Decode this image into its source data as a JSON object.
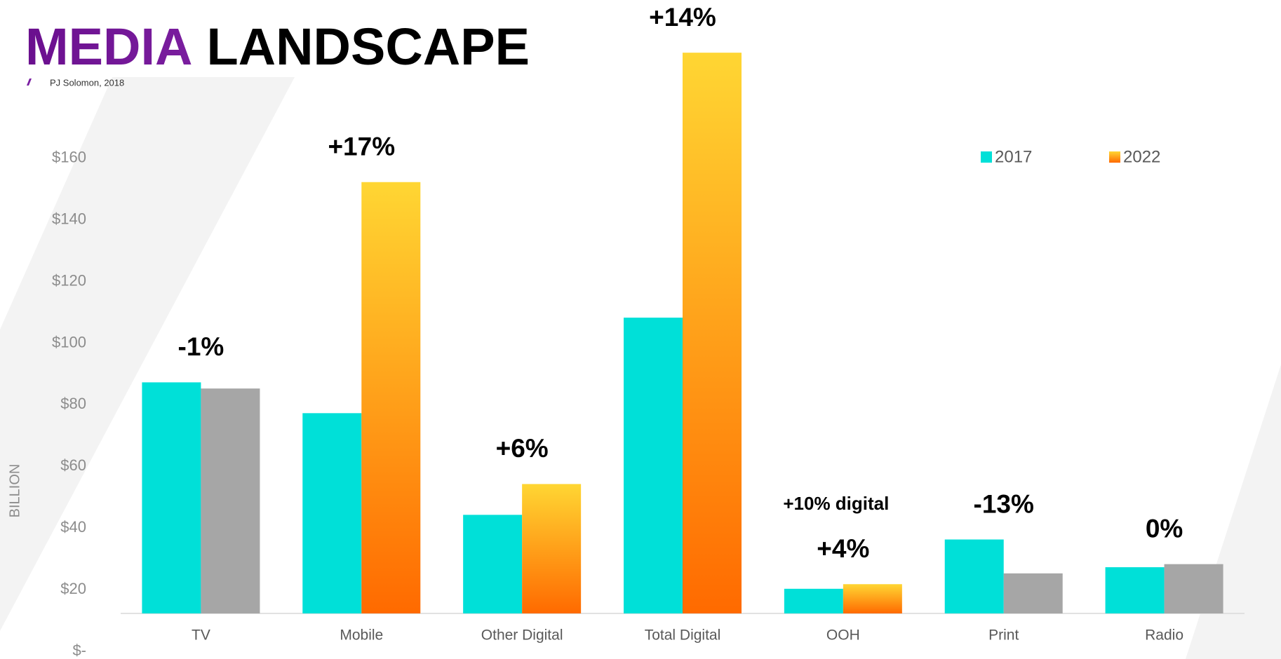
{
  "chart_data": {
    "type": "bar",
    "title_part1": "MEDIA",
    "title_part2": "LANDSCAPE",
    "subtitle": "PJ Solomon, 2018",
    "y_label": "BILLION",
    "categories": [
      "TV",
      "Mobile",
      "Other Digital",
      "Total Digital",
      "OOH",
      "Print",
      "Radio"
    ],
    "series": [
      {
        "name": "2017",
        "color": "#00e0d8",
        "values": [
          75,
          65,
          32,
          96,
          8,
          24,
          15
        ]
      },
      {
        "name": "2022",
        "color": [
          "#ffd633",
          "#ff6a00"
        ],
        "colors": [
          "#a6a6a6",
          null,
          null,
          null,
          null,
          "#a6a6a6",
          "#a6a6a6"
        ],
        "values": [
          73,
          140,
          42,
          182,
          9.5,
          13,
          16
        ]
      }
    ],
    "annotations": [
      {
        "text": "-1%",
        "category": "TV"
      },
      {
        "text": "+17%",
        "category": "Mobile"
      },
      {
        "text": "+6%",
        "category": "Other Digital"
      },
      {
        "text": "+14%",
        "category": "Total Digital"
      },
      {
        "text": "+4%",
        "category": "OOH"
      },
      {
        "text": "+10% digital",
        "category": "OOH"
      },
      {
        "text": "-13%",
        "category": "Print"
      },
      {
        "text": "0%",
        "category": "Radio"
      }
    ],
    "ylim": [
      0,
      190
    ],
    "yticks": [
      {
        "value": 0,
        "label": "$-"
      },
      {
        "value": 20,
        "label": "$20"
      },
      {
        "value": 40,
        "label": "$40"
      },
      {
        "value": 60,
        "label": "$60"
      },
      {
        "value": 80,
        "label": "$80"
      },
      {
        "value": 100,
        "label": "$100"
      },
      {
        "value": 120,
        "label": "$120"
      },
      {
        "value": 140,
        "label": "$140"
      },
      {
        "value": 160,
        "label": "$160"
      }
    ],
    "legend": "top-right",
    "grid": false
  }
}
